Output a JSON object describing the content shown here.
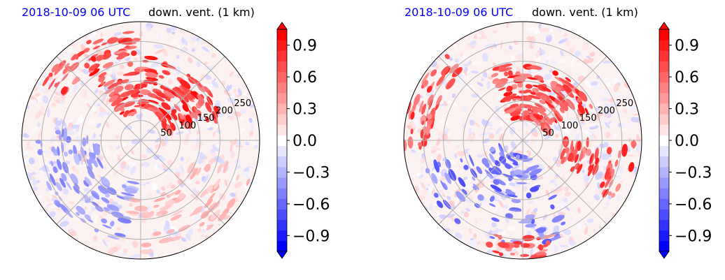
{
  "chart_data": [
    {
      "type": "heatmap",
      "projection": "polar",
      "title_left": "2018-10-09 06 UTC",
      "title_right": "down. vent. (1 km)",
      "title_left_color": "#0000ff",
      "radial_ticks": [
        "50",
        "100",
        "150",
        "200",
        "250"
      ],
      "radial_tick_values": [
        50,
        100,
        150,
        200,
        250
      ],
      "rlim": [
        0,
        300
      ],
      "grid": true,
      "colorbar": {
        "ticks": [
          "−0.9",
          "−0.6",
          "−0.3",
          "0.0",
          "0.3",
          "0.6",
          "0.9"
        ],
        "tick_values": [
          -0.9,
          -0.6,
          -0.3,
          0.0,
          0.3,
          0.6,
          0.9
        ],
        "range": [
          -1.05,
          1.05
        ],
        "extend": "both",
        "cmap": "bwr"
      }
    },
    {
      "type": "heatmap",
      "projection": "polar",
      "title_left": "2018-10-09 06 UTC",
      "title_right": "down. vent. (1 km)",
      "title_left_color": "#0000ff",
      "radial_ticks": [
        "50",
        "100",
        "150",
        "200",
        "250"
      ],
      "radial_tick_values": [
        50,
        100,
        150,
        200,
        250
      ],
      "rlim": [
        0,
        300
      ],
      "grid": true,
      "colorbar": {
        "ticks": [
          "−0.9",
          "−0.6",
          "−0.3",
          "0.0",
          "0.3",
          "0.6",
          "0.9"
        ],
        "tick_values": [
          -0.9,
          -0.6,
          -0.3,
          0.0,
          0.3,
          0.6,
          0.9
        ],
        "range": [
          -1.05,
          1.05
        ],
        "extend": "both",
        "cmap": "bwr"
      }
    }
  ]
}
